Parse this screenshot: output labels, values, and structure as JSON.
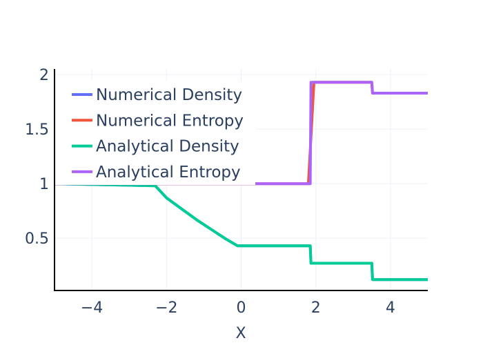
{
  "chart_data": {
    "type": "line",
    "xlabel": "X",
    "ylabel": "",
    "xlim": [
      -5,
      5
    ],
    "ylim": [
      0.02,
      2.02
    ],
    "xticks": [
      -4,
      -2,
      0,
      2,
      4
    ],
    "xtick_labels": [
      "−4",
      "−2",
      "0",
      "2",
      "4"
    ],
    "yticks": [
      0.5,
      1,
      1.5,
      2
    ],
    "ytick_labels": [
      "0.5",
      "1",
      "1.5",
      "2"
    ],
    "grid": true,
    "legend_position": "top-left",
    "series": [
      {
        "name": "Numerical Density",
        "color": "#636efa",
        "x": [
          -5,
          -2.3,
          -2.0,
          -1.6,
          -1.2,
          -0.8,
          -0.4,
          -0.1,
          1.85,
          1.87,
          3.5,
          3.52,
          5
        ],
        "y": [
          1.0,
          0.98,
          0.87,
          0.77,
          0.67,
          0.58,
          0.49,
          0.43,
          0.43,
          0.27,
          0.27,
          0.12,
          0.12
        ]
      },
      {
        "name": "Numerical Entropy",
        "color": "#EF553B",
        "x": [
          -5,
          1.8,
          1.85,
          1.95,
          3.5,
          3.52,
          5
        ],
        "y": [
          1.0,
          1.0,
          1.3,
          1.93,
          1.93,
          1.83,
          1.83
        ]
      },
      {
        "name": "Analytical Density",
        "color": "#00cc96",
        "x": [
          -5,
          -2.3,
          -2.0,
          -1.6,
          -1.2,
          -0.8,
          -0.4,
          -0.1,
          1.85,
          1.87,
          3.5,
          3.52,
          5
        ],
        "y": [
          1.0,
          0.98,
          0.87,
          0.77,
          0.67,
          0.58,
          0.49,
          0.43,
          0.43,
          0.27,
          0.27,
          0.12,
          0.12
        ]
      },
      {
        "name": "Analytical Entropy",
        "color": "#ab63fa",
        "x": [
          -5,
          1.85,
          1.87,
          3.5,
          3.52,
          5
        ],
        "y": [
          1.0,
          1.0,
          1.93,
          1.93,
          1.83,
          1.83
        ]
      }
    ]
  }
}
